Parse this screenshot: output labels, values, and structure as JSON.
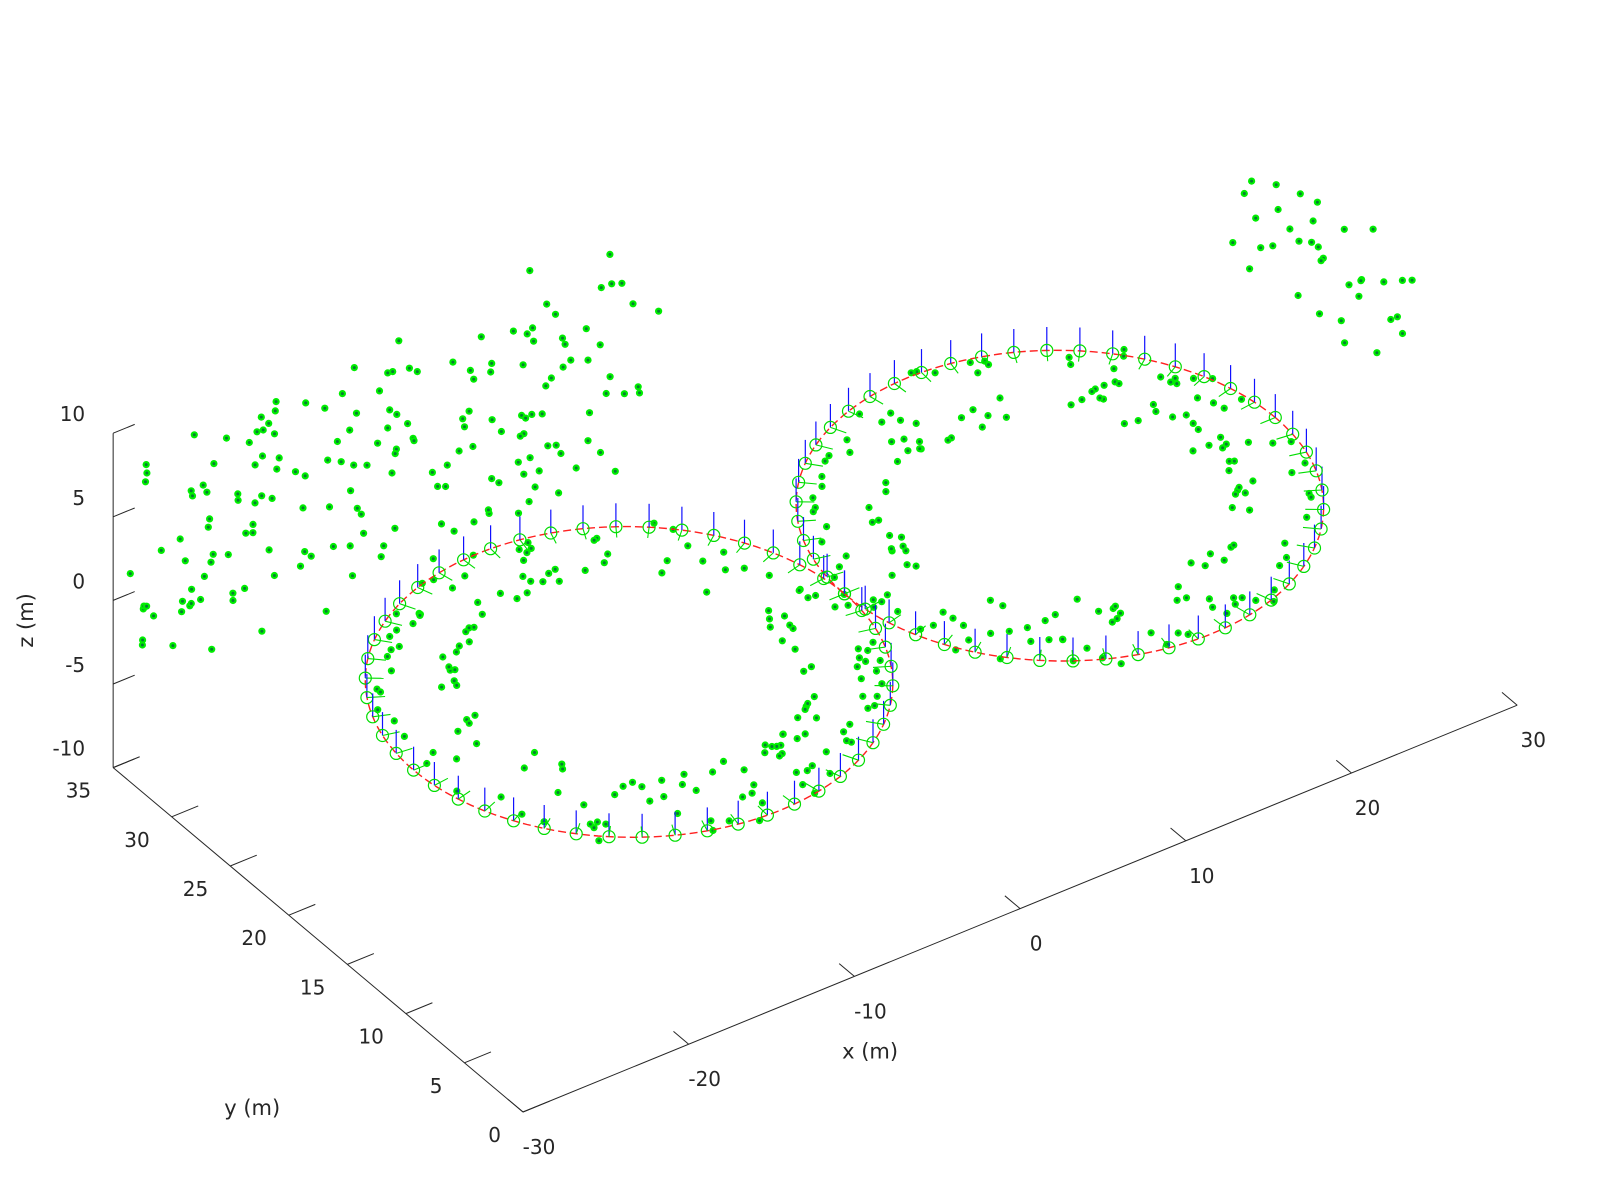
{
  "chart_data": {
    "type": "scatter",
    "projection": "3d",
    "title": "",
    "xlabel": "x (m)",
    "ylabel": "y (m)",
    "zlabel": "z (m)",
    "xlim": [
      -30,
      30
    ],
    "ylim": [
      0,
      35
    ],
    "zlim": [
      -10,
      10
    ],
    "xticks": [
      "-30",
      "-20",
      "-10",
      "0",
      "10",
      "20",
      "30"
    ],
    "yticks": [
      "0",
      "5",
      "10",
      "15",
      "20",
      "25",
      "30",
      "35"
    ],
    "zticks": [
      "-10",
      "-5",
      "0",
      "5",
      "10"
    ],
    "grid": false,
    "legend": "none",
    "colors": {
      "landmarks": "#00ee00",
      "landmark_core": "#0a4a4a",
      "trajectory": "#ff2020",
      "camera_poses": "#00dd00",
      "camera_up_axis": "#1010ff",
      "axes": "#262626"
    },
    "trajectory": {
      "shape": "figure-eight",
      "loops": [
        {
          "center_x": -13,
          "center_y": 15,
          "radius_m": 13,
          "z": 0
        },
        {
          "center_x": 13,
          "center_y": 15,
          "radius_m": 13,
          "z": 0
        }
      ]
    },
    "camera_poses": {
      "count": 100
    },
    "landmarks": [
      {
        "name": "inner ring 1",
        "center_x": -13,
        "center_y": 15,
        "radius_m": 9,
        "z_range": [
          -1,
          1
        ],
        "count": 80
      },
      {
        "name": "inner ring 2",
        "center_x": 13,
        "center_y": 15,
        "radius_m": 9,
        "z_range": [
          -1,
          1
        ],
        "count": 80
      },
      {
        "name": "outer ring 1",
        "center_x": -13,
        "center_y": 15,
        "radius_m": 12,
        "z_range": [
          -1,
          1
        ],
        "count": 90
      },
      {
        "name": "outer ring 2",
        "center_x": 13,
        "center_y": 15,
        "radius_m": 12,
        "z_range": [
          -1,
          1
        ],
        "count": 90
      },
      {
        "name": "far wall",
        "x_range": [
          -30,
          0
        ],
        "y_range": [
          30,
          35
        ],
        "z_range": [
          -2,
          10
        ],
        "count": 180
      },
      {
        "name": "right cluster",
        "x_range": [
          27,
          32
        ],
        "y_range": [
          10,
          22
        ],
        "z_range": [
          5,
          10
        ],
        "count": 35
      }
    ]
  }
}
